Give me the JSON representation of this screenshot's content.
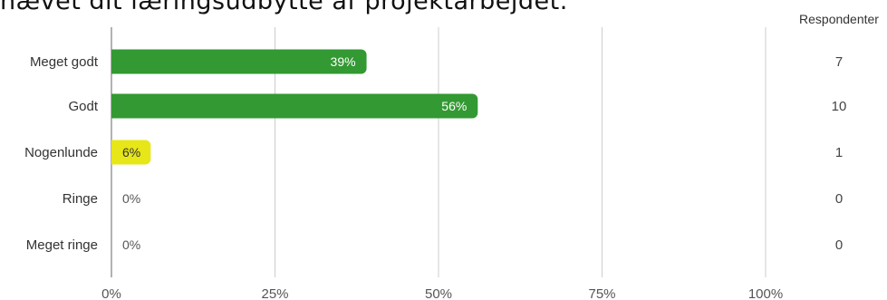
{
  "page": {
    "title": "nævet dit læringsudbytte af projektarbejdet."
  },
  "chart_data": {
    "type": "bar",
    "orientation": "horizontal",
    "title": "nævet dit læringsudbytte af projektarbejdet.",
    "categories": [
      "Meget godt",
      "Godt",
      "Nogenlunde",
      "Ringe",
      "Meget ringe"
    ],
    "values": [
      39,
      56,
      6,
      0,
      0
    ],
    "value_labels": [
      "39%",
      "56%",
      "6%",
      "0%",
      "0%"
    ],
    "counts": [
      7,
      10,
      1,
      0,
      0
    ],
    "bar_colors": [
      "#339933",
      "#339933",
      "#e6e619",
      "#339933",
      "#339933"
    ],
    "xlim": [
      0,
      100
    ],
    "x_ticks": [
      0,
      25,
      50,
      75,
      100
    ],
    "x_tick_labels": [
      "0%",
      "25%",
      "50%",
      "75%",
      "100%"
    ],
    "counts_header": "Respondenter",
    "grid": true,
    "colors": {
      "bar_primary": "#339933",
      "bar_highlight": "#e6e619",
      "grid": "#cccccc"
    }
  }
}
